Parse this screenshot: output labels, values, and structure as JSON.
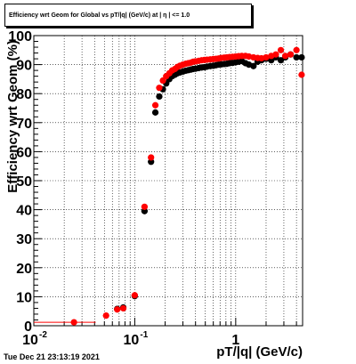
{
  "chart_data": {
    "type": "scatter",
    "title": "Efficiency wrt Geom for Global vs pT/|q| (GeV/c) at | η | <= 1.0",
    "xlabel": "pT/|q| (GeV/c)",
    "ylabel": "Efficiency wrt Geom (%)",
    "x_scale": "log",
    "xlim": [
      0.01,
      4.6
    ],
    "ylim": [
      0,
      100
    ],
    "grid": true,
    "x_ticks": [
      {
        "value": 0.01,
        "label": "10",
        "exp": "-2"
      },
      {
        "value": 0.1,
        "label": "10",
        "exp": "-1"
      },
      {
        "value": 1,
        "label": "1",
        "exp": ""
      }
    ],
    "y_ticks": [
      0,
      10,
      20,
      30,
      40,
      50,
      60,
      70,
      80,
      90,
      100
    ],
    "series": [
      {
        "color": "#ff0000",
        "x": [
          0.025,
          0.052,
          0.067,
          0.077,
          0.1,
          0.125,
          0.145,
          0.16,
          0.175,
          0.19,
          0.205,
          0.22,
          0.235,
          0.25,
          0.265,
          0.28,
          0.3,
          0.32,
          0.34,
          0.36,
          0.38,
          0.4,
          0.43,
          0.46,
          0.49,
          0.52,
          0.56,
          0.6,
          0.64,
          0.68,
          0.72,
          0.77,
          0.82,
          0.87,
          0.93,
          1.0,
          1.07,
          1.15,
          1.25,
          1.35,
          1.5,
          1.65,
          1.8,
          2.0,
          2.25,
          2.5,
          2.8,
          3.1,
          3.5,
          4.0,
          4.5
        ],
        "y": [
          1.2,
          3.5,
          5.6,
          6.0,
          10.5,
          41,
          58,
          76,
          82,
          84.5,
          86,
          87,
          88,
          88.5,
          89.2,
          89.6,
          90,
          90.3,
          90.5,
          90.7,
          91,
          91.1,
          91.3,
          91.5,
          91.6,
          91.7,
          91.8,
          91.9,
          92,
          92.1,
          92.3,
          92.4,
          92.5,
          92.6,
          92.7,
          92.8,
          92.9,
          93,
          93,
          92.8,
          92.5,
          92.3,
          92.2,
          92.5,
          93,
          93.5,
          95,
          93,
          93.5,
          95,
          86.5
        ]
      },
      {
        "color": "#000000",
        "x": [
          0.067,
          0.077,
          0.1,
          0.125,
          0.145,
          0.16,
          0.175,
          0.19,
          0.205,
          0.22,
          0.235,
          0.25,
          0.265,
          0.28,
          0.3,
          0.32,
          0.34,
          0.36,
          0.38,
          0.4,
          0.43,
          0.46,
          0.49,
          0.52,
          0.56,
          0.6,
          0.64,
          0.68,
          0.72,
          0.77,
          0.82,
          0.87,
          0.93,
          1.0,
          1.07,
          1.15,
          1.25,
          1.35,
          1.5,
          1.65,
          1.8,
          2.0,
          2.25,
          2.5,
          2.8,
          3.1,
          3.5,
          4.0,
          4.5
        ],
        "y": [
          5.8,
          6.3,
          10.2,
          39.5,
          56.5,
          73.5,
          79,
          81.5,
          83.5,
          85,
          86,
          86.5,
          87,
          87.3,
          87.6,
          87.9,
          88.1,
          88.3,
          88.5,
          88.6,
          88.8,
          89,
          89.1,
          89.3,
          89.5,
          89.6,
          89.8,
          90,
          90.1,
          90.2,
          90.3,
          90.5,
          90.6,
          90.8,
          91,
          91.2,
          90.5,
          90,
          89.5,
          91,
          91.5,
          92,
          91.5,
          92.5,
          91.5,
          92.5,
          93.5,
          92.5,
          92.5
        ]
      }
    ]
  },
  "footer": {
    "timestamp": "Tue Dec 21 23:13:19 2021"
  }
}
